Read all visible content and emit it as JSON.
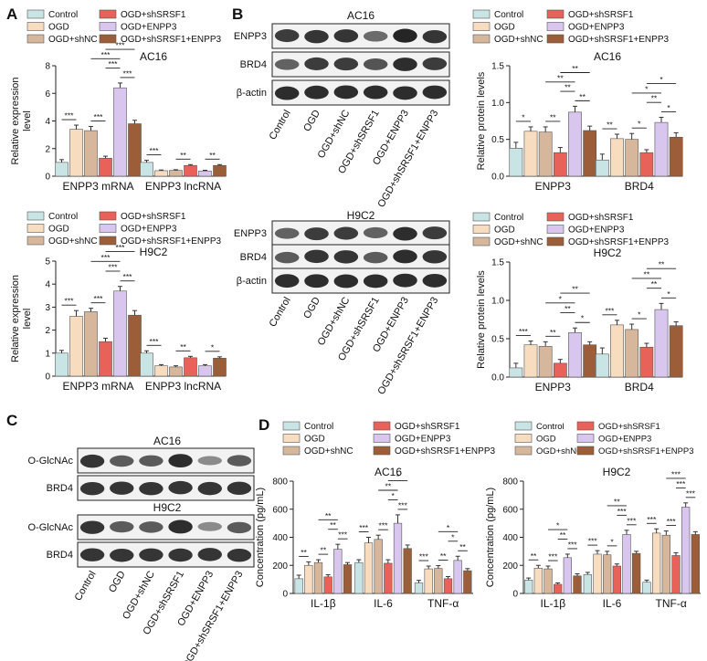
{
  "colors": {
    "Control": "#c9e4e4",
    "OGD": "#f8dcc0",
    "OGD+shNC": "#d6b79c",
    "OGD+shSRSF1": "#e8625a",
    "OGD+ENPP3": "#d8c6ef",
    "OGD+shSRSF1+ENPP3": "#9c5e38"
  },
  "groups": [
    "Control",
    "OGD",
    "OGD+shNC",
    "OGD+shSRSF1",
    "OGD+ENPP3",
    "OGD+shSRSF1+ENPP3"
  ],
  "panels": {
    "A": "A",
    "B": "B",
    "C": "C",
    "D": "D"
  },
  "blots": {
    "b_top_title": "AC16",
    "b_bottom_title": "H9C2",
    "b_rows": [
      "ENPP3",
      "BRD4",
      "β-actin"
    ],
    "c_top_title": "AC16",
    "c_bottom_title": "H9C2",
    "c_rows": [
      "O-GlcNAc",
      "BRD4"
    ]
  },
  "chart_data": [
    {
      "id": "A_AC16",
      "type": "bar",
      "title": "AC16",
      "ylabel": "Relative expression level",
      "categories": [
        "ENPP3 mRNA",
        "ENPP3 lncRNA"
      ],
      "ylim": [
        0,
        8
      ],
      "yticks": [
        "0",
        "2",
        "4",
        "6",
        "8"
      ],
      "series": [
        {
          "name": "Control",
          "values": [
            1.0,
            1.0
          ]
        },
        {
          "name": "OGD",
          "values": [
            3.4,
            0.4
          ]
        },
        {
          "name": "OGD+shNC",
          "values": [
            3.3,
            0.42
          ]
        },
        {
          "name": "OGD+shSRSF1",
          "values": [
            1.3,
            0.78
          ]
        },
        {
          "name": "OGD+ENPP3",
          "values": [
            6.4,
            0.38
          ]
        },
        {
          "name": "OGD+shSRSF1+ENPP3",
          "values": [
            3.8,
            0.78
          ]
        }
      ],
      "errors": [
        [
          0.2,
          0.15
        ],
        [
          0.3,
          0.05
        ],
        [
          0.3,
          0.05
        ],
        [
          0.15,
          0.06
        ],
        [
          0.35,
          0.05
        ],
        [
          0.25,
          0.06
        ]
      ],
      "sig": [
        {
          "i": 0,
          "a": 0,
          "b": 1,
          "lab": "***",
          "lvl": 0
        },
        {
          "i": 0,
          "a": 2,
          "b": 3,
          "lab": "***",
          "lvl": 0
        },
        {
          "i": 0,
          "a": 3,
          "b": 4,
          "lab": "***",
          "lvl": 1
        },
        {
          "i": 0,
          "a": 4,
          "b": 5,
          "lab": "***",
          "lvl": 0
        },
        {
          "i": 0,
          "a": 2,
          "b": 4,
          "lab": "***",
          "lvl": 2
        },
        {
          "i": 0,
          "a": 3,
          "b": 5,
          "lab": "***",
          "lvl": 3
        },
        {
          "i": 1,
          "a": 0,
          "b": 1,
          "lab": "***",
          "lvl": 0
        },
        {
          "i": 1,
          "a": 2,
          "b": 3,
          "lab": "**",
          "lvl": 0
        },
        {
          "i": 1,
          "a": 4,
          "b": 5,
          "lab": "**",
          "lvl": 0
        }
      ]
    },
    {
      "id": "A_H9C2",
      "type": "bar",
      "title": "H9C2",
      "ylabel": "Relative expression level",
      "categories": [
        "ENPP3 mRNA",
        "ENPP3 lncRNA"
      ],
      "ylim": [
        0,
        5
      ],
      "yticks": [
        "0",
        "1",
        "2",
        "3",
        "4",
        "5"
      ],
      "series": [
        {
          "name": "Control",
          "values": [
            1.0,
            1.0
          ]
        },
        {
          "name": "OGD",
          "values": [
            2.6,
            0.45
          ]
        },
        {
          "name": "OGD+shNC",
          "values": [
            2.8,
            0.4
          ]
        },
        {
          "name": "OGD+shSRSF1",
          "values": [
            1.5,
            0.8
          ]
        },
        {
          "name": "OGD+ENPP3",
          "values": [
            3.7,
            0.45
          ]
        },
        {
          "name": "OGD+shSRSF1+ENPP3",
          "values": [
            2.65,
            0.78
          ]
        }
      ],
      "errors": [
        [
          0.12,
          0.1
        ],
        [
          0.25,
          0.05
        ],
        [
          0.15,
          0.05
        ],
        [
          0.15,
          0.06
        ],
        [
          0.2,
          0.05
        ],
        [
          0.2,
          0.06
        ]
      ],
      "sig": [
        {
          "i": 0,
          "a": 0,
          "b": 1,
          "lab": "***",
          "lvl": 0
        },
        {
          "i": 0,
          "a": 2,
          "b": 3,
          "lab": "***",
          "lvl": 0
        },
        {
          "i": 0,
          "a": 4,
          "b": 5,
          "lab": "***",
          "lvl": 0
        },
        {
          "i": 0,
          "a": 3,
          "b": 4,
          "lab": "***",
          "lvl": 1
        },
        {
          "i": 0,
          "a": 2,
          "b": 4,
          "lab": "***",
          "lvl": 2
        },
        {
          "i": 0,
          "a": 3,
          "b": 5,
          "lab": "***",
          "lvl": 3
        },
        {
          "i": 1,
          "a": 0,
          "b": 1,
          "lab": "***",
          "lvl": 0
        },
        {
          "i": 1,
          "a": 2,
          "b": 3,
          "lab": "**",
          "lvl": 0
        },
        {
          "i": 1,
          "a": 4,
          "b": 5,
          "lab": "*",
          "lvl": 0
        }
      ]
    },
    {
      "id": "B_AC16",
      "type": "bar",
      "title": "AC16",
      "ylabel": "Relative protein levels",
      "categories": [
        "ENPP3",
        "BRD4"
      ],
      "ylim": [
        0,
        1.5
      ],
      "yticks": [
        "0.0",
        "0.5",
        "1.0",
        "1.5"
      ],
      "series": [
        {
          "name": "Control",
          "values": [
            0.38,
            0.22
          ]
        },
        {
          "name": "OGD",
          "values": [
            0.61,
            0.51
          ]
        },
        {
          "name": "OGD+shNC",
          "values": [
            0.6,
            0.5
          ]
        },
        {
          "name": "OGD+shSRSF1",
          "values": [
            0.32,
            0.32
          ]
        },
        {
          "name": "OGD+ENPP3",
          "values": [
            0.87,
            0.73
          ]
        },
        {
          "name": "OGD+shSRSF1+ENPP3",
          "values": [
            0.62,
            0.53
          ]
        }
      ],
      "errors": [
        [
          0.08,
          0.08
        ],
        [
          0.06,
          0.06
        ],
        [
          0.07,
          0.08
        ],
        [
          0.07,
          0.04
        ],
        [
          0.08,
          0.07
        ],
        [
          0.06,
          0.06
        ]
      ],
      "sig": [
        {
          "i": 0,
          "a": 0,
          "b": 1,
          "lab": "*",
          "lvl": 0
        },
        {
          "i": 0,
          "a": 2,
          "b": 3,
          "lab": "**",
          "lvl": 0
        },
        {
          "i": 0,
          "a": 4,
          "b": 5,
          "lab": "**",
          "lvl": 0
        },
        {
          "i": 0,
          "a": 3,
          "b": 4,
          "lab": "**",
          "lvl": 1
        },
        {
          "i": 0,
          "a": 2,
          "b": 4,
          "lab": "**",
          "lvl": 2
        },
        {
          "i": 0,
          "a": 3,
          "b": 5,
          "lab": "**",
          "lvl": 3
        },
        {
          "i": 1,
          "a": 0,
          "b": 1,
          "lab": "**",
          "lvl": 0
        },
        {
          "i": 1,
          "a": 2,
          "b": 3,
          "lab": "*",
          "lvl": 0
        },
        {
          "i": 1,
          "a": 4,
          "b": 5,
          "lab": "*",
          "lvl": 0
        },
        {
          "i": 1,
          "a": 3,
          "b": 4,
          "lab": "**",
          "lvl": 1
        },
        {
          "i": 1,
          "a": 2,
          "b": 4,
          "lab": "*",
          "lvl": 2
        },
        {
          "i": 1,
          "a": 3,
          "b": 5,
          "lab": "*",
          "lvl": 3
        }
      ]
    },
    {
      "id": "B_H9C2",
      "type": "bar",
      "title": "H9C2",
      "ylabel": "Relative protein levels",
      "categories": [
        "ENPP3",
        "BRD4"
      ],
      "ylim": [
        0,
        1.5
      ],
      "yticks": [
        "0.0",
        "0.5",
        "1.0",
        "1.5"
      ],
      "series": [
        {
          "name": "Control",
          "values": [
            0.12,
            0.3
          ]
        },
        {
          "name": "OGD",
          "values": [
            0.42,
            0.68
          ]
        },
        {
          "name": "OGD+shNC",
          "values": [
            0.4,
            0.62
          ]
        },
        {
          "name": "OGD+shSRSF1",
          "values": [
            0.18,
            0.39
          ]
        },
        {
          "name": "OGD+ENPP3",
          "values": [
            0.58,
            0.88
          ]
        },
        {
          "name": "OGD+shSRSF1+ENPP3",
          "values": [
            0.42,
            0.67
          ]
        }
      ],
      "errors": [
        [
          0.06,
          0.08
        ],
        [
          0.05,
          0.06
        ],
        [
          0.06,
          0.07
        ],
        [
          0.05,
          0.05
        ],
        [
          0.06,
          0.08
        ],
        [
          0.04,
          0.05
        ]
      ],
      "sig": [
        {
          "i": 0,
          "a": 0,
          "b": 1,
          "lab": "***",
          "lvl": 0
        },
        {
          "i": 0,
          "a": 2,
          "b": 3,
          "lab": "**",
          "lvl": 0
        },
        {
          "i": 0,
          "a": 4,
          "b": 5,
          "lab": "*",
          "lvl": 0
        },
        {
          "i": 0,
          "a": 3,
          "b": 4,
          "lab": "**",
          "lvl": 1
        },
        {
          "i": 0,
          "a": 2,
          "b": 4,
          "lab": "*",
          "lvl": 2
        },
        {
          "i": 0,
          "a": 3,
          "b": 5,
          "lab": "**",
          "lvl": 3
        },
        {
          "i": 1,
          "a": 0,
          "b": 1,
          "lab": "***",
          "lvl": 0
        },
        {
          "i": 1,
          "a": 2,
          "b": 3,
          "lab": "*",
          "lvl": 0
        },
        {
          "i": 1,
          "a": 4,
          "b": 5,
          "lab": "*",
          "lvl": 0
        },
        {
          "i": 1,
          "a": 3,
          "b": 4,
          "lab": "**",
          "lvl": 1
        },
        {
          "i": 1,
          "a": 2,
          "b": 4,
          "lab": "**",
          "lvl": 2
        },
        {
          "i": 1,
          "a": 3,
          "b": 5,
          "lab": "**",
          "lvl": 3
        }
      ]
    },
    {
      "id": "D_AC16",
      "type": "bar",
      "title": "AC16",
      "ylabel": "Concentration (pg/mL)",
      "categories": [
        "IL-1β",
        "IL-6",
        "TNF-α"
      ],
      "ylim": [
        0,
        800
      ],
      "yticks": [
        "0",
        "200",
        "400",
        "600",
        "800"
      ],
      "series": [
        {
          "name": "Control",
          "values": [
            105,
            220,
            75
          ]
        },
        {
          "name": "OGD",
          "values": [
            200,
            360,
            175
          ]
        },
        {
          "name": "OGD+shNC",
          "values": [
            220,
            385,
            178
          ]
        },
        {
          "name": "OGD+shSRSF1",
          "values": [
            118,
            215,
            105
          ]
        },
        {
          "name": "OGD+ENPP3",
          "values": [
            315,
            500,
            235
          ]
        },
        {
          "name": "OGD+shSRSF1+ENPP3",
          "values": [
            205,
            320,
            162
          ]
        }
      ],
      "errors": [
        [
          25,
          20,
          18
        ],
        [
          25,
          40,
          20
        ],
        [
          20,
          30,
          20
        ],
        [
          15,
          25,
          15
        ],
        [
          35,
          60,
          30
        ],
        [
          15,
          25,
          15
        ]
      ],
      "sig": [
        {
          "i": 0,
          "a": 0,
          "b": 1,
          "lab": "**",
          "lvl": 0
        },
        {
          "i": 0,
          "a": 2,
          "b": 3,
          "lab": "**",
          "lvl": 0
        },
        {
          "i": 0,
          "a": 4,
          "b": 5,
          "lab": "***",
          "lvl": 0
        },
        {
          "i": 0,
          "a": 3,
          "b": 4,
          "lab": "**",
          "lvl": 1
        },
        {
          "i": 0,
          "a": 2,
          "b": 4,
          "lab": "**",
          "lvl": 2
        },
        {
          "i": 1,
          "a": 0,
          "b": 1,
          "lab": "***",
          "lvl": 0
        },
        {
          "i": 1,
          "a": 2,
          "b": 3,
          "lab": "***",
          "lvl": 0
        },
        {
          "i": 1,
          "a": 4,
          "b": 5,
          "lab": "***",
          "lvl": 0
        },
        {
          "i": 1,
          "a": 3,
          "b": 4,
          "lab": "*",
          "lvl": 1
        },
        {
          "i": 1,
          "a": 2,
          "b": 4,
          "lab": "**",
          "lvl": 2
        },
        {
          "i": 1,
          "a": 3,
          "b": 5,
          "lab": "*",
          "lvl": 3
        },
        {
          "i": 2,
          "a": 0,
          "b": 1,
          "lab": "***",
          "lvl": 0
        },
        {
          "i": 2,
          "a": 2,
          "b": 3,
          "lab": "**",
          "lvl": 0
        },
        {
          "i": 2,
          "a": 4,
          "b": 5,
          "lab": "**",
          "lvl": 0
        },
        {
          "i": 2,
          "a": 3,
          "b": 4,
          "lab": "*",
          "lvl": 1
        },
        {
          "i": 2,
          "a": 2,
          "b": 4,
          "lab": "*",
          "lvl": 2
        }
      ]
    },
    {
      "id": "D_H9C2",
      "type": "bar",
      "title": "H9C2",
      "ylabel": "Concentration (pg/mL)",
      "categories": [
        "IL-1β",
        "IL-6",
        "TNF-α"
      ],
      "ylim": [
        0,
        800
      ],
      "yticks": [
        "0",
        "200",
        "400",
        "600",
        "800"
      ],
      "series": [
        {
          "name": "Control",
          "values": [
            95,
            135,
            80
          ]
        },
        {
          "name": "OGD",
          "values": [
            180,
            280,
            430
          ]
        },
        {
          "name": "OGD+shNC",
          "values": [
            175,
            275,
            415
          ]
        },
        {
          "name": "OGD+shSRSF1",
          "values": [
            65,
            195,
            270
          ]
        },
        {
          "name": "OGD+ENPP3",
          "values": [
            255,
            420,
            615
          ]
        },
        {
          "name": "OGD+shSRSF1+ENPP3",
          "values": [
            125,
            285,
            420
          ]
        }
      ],
      "errors": [
        [
          15,
          15,
          15
        ],
        [
          20,
          25,
          30
        ],
        [
          20,
          25,
          30
        ],
        [
          10,
          15,
          20
        ],
        [
          25,
          30,
          30
        ],
        [
          15,
          15,
          20
        ]
      ],
      "sig": [
        {
          "i": 0,
          "a": 0,
          "b": 1,
          "lab": "**",
          "lvl": 0
        },
        {
          "i": 0,
          "a": 2,
          "b": 3,
          "lab": "***",
          "lvl": 0
        },
        {
          "i": 0,
          "a": 4,
          "b": 5,
          "lab": "***",
          "lvl": 0
        },
        {
          "i": 0,
          "a": 3,
          "b": 4,
          "lab": "**",
          "lvl": 1
        },
        {
          "i": 0,
          "a": 2,
          "b": 4,
          "lab": "*",
          "lvl": 2
        },
        {
          "i": 1,
          "a": 0,
          "b": 1,
          "lab": "***",
          "lvl": 0
        },
        {
          "i": 1,
          "a": 2,
          "b": 3,
          "lab": "*",
          "lvl": 0
        },
        {
          "i": 1,
          "a": 4,
          "b": 5,
          "lab": "***",
          "lvl": 0
        },
        {
          "i": 1,
          "a": 3,
          "b": 4,
          "lab": "***",
          "lvl": 1
        },
        {
          "i": 1,
          "a": 2,
          "b": 4,
          "lab": "**",
          "lvl": 2
        },
        {
          "i": 2,
          "a": 0,
          "b": 1,
          "lab": "***",
          "lvl": 0
        },
        {
          "i": 2,
          "a": 2,
          "b": 3,
          "lab": "***",
          "lvl": 0
        },
        {
          "i": 2,
          "a": 4,
          "b": 5,
          "lab": "***",
          "lvl": 0
        },
        {
          "i": 2,
          "a": 3,
          "b": 4,
          "lab": "***",
          "lvl": 1
        },
        {
          "i": 2,
          "a": 2,
          "b": 4,
          "lab": "***",
          "lvl": 2
        }
      ]
    }
  ]
}
